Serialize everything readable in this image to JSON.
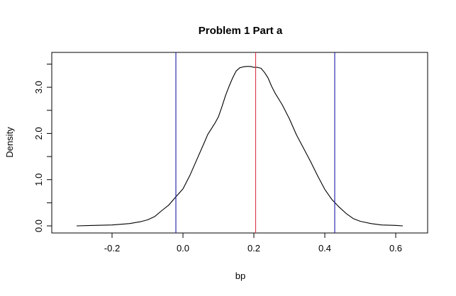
{
  "chart_data": {
    "type": "line",
    "title": "Problem 1 Part a",
    "xlabel": "bp",
    "ylabel": "Density",
    "xlim": [
      -0.32,
      0.64
    ],
    "ylim": [
      0.0,
      3.6
    ],
    "x_ticks": [
      -0.2,
      0.0,
      0.2,
      0.4,
      0.6
    ],
    "x_tick_labels": [
      "-0.2",
      "0.0",
      "0.2",
      "0.4",
      "0.6"
    ],
    "y_ticks": [
      0.0,
      1.0,
      2.0,
      3.0
    ],
    "y_tick_labels": [
      "0.0",
      "1.0",
      "2.0",
      "3.0"
    ],
    "y_minor_ticks": [
      0.5,
      1.5,
      2.5,
      3.5
    ],
    "grid": false,
    "series": [
      {
        "color": "#000000",
        "x": [
          -0.3,
          -0.25,
          -0.2,
          -0.15,
          -0.12,
          -0.1,
          -0.08,
          -0.06,
          -0.04,
          -0.02,
          0.0,
          0.02,
          0.04,
          0.06,
          0.07,
          0.08,
          0.09,
          0.1,
          0.11,
          0.12,
          0.13,
          0.14,
          0.15,
          0.16,
          0.17,
          0.18,
          0.19,
          0.2,
          0.21,
          0.22,
          0.23,
          0.24,
          0.25,
          0.26,
          0.28,
          0.3,
          0.32,
          0.34,
          0.36,
          0.38,
          0.4,
          0.42,
          0.44,
          0.46,
          0.48,
          0.5,
          0.53,
          0.56,
          0.6,
          0.62
        ],
        "y": [
          0.0,
          0.01,
          0.02,
          0.05,
          0.09,
          0.13,
          0.2,
          0.33,
          0.45,
          0.63,
          0.8,
          1.1,
          1.45,
          1.8,
          1.98,
          2.1,
          2.22,
          2.36,
          2.58,
          2.82,
          3.02,
          3.2,
          3.35,
          3.42,
          3.44,
          3.45,
          3.45,
          3.43,
          3.43,
          3.41,
          3.32,
          3.2,
          3.02,
          2.87,
          2.62,
          2.32,
          1.97,
          1.68,
          1.39,
          1.08,
          0.79,
          0.57,
          0.41,
          0.27,
          0.16,
          0.1,
          0.05,
          0.02,
          0.01,
          0.0
        ]
      }
    ],
    "vlines": [
      {
        "x": -0.02,
        "color": "#1a1aa6"
      },
      {
        "x": 0.205,
        "color": "#d9333f"
      },
      {
        "x": 0.428,
        "color": "#1a1aa6"
      }
    ]
  }
}
